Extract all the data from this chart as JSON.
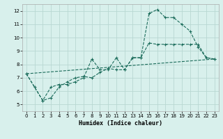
{
  "title": "",
  "xlabel": "Humidex (Indice chaleur)",
  "bg_color": "#d8f0ec",
  "grid_color": "#b8d8d2",
  "line_color": "#1a6b5a",
  "xlim": [
    -0.5,
    23.5
  ],
  "ylim": [
    4.5,
    12.5
  ],
  "xticks": [
    0,
    1,
    2,
    3,
    4,
    5,
    6,
    7,
    8,
    9,
    10,
    11,
    12,
    13,
    14,
    15,
    16,
    17,
    18,
    19,
    20,
    21,
    22,
    23
  ],
  "yticks": [
    5,
    6,
    7,
    8,
    9,
    10,
    11,
    12
  ],
  "line1_x": [
    0,
    1,
    2,
    3,
    4,
    5,
    6,
    7,
    8,
    9,
    10,
    11,
    12,
    13,
    14,
    15,
    16,
    17,
    18,
    19,
    20,
    21,
    22,
    23
  ],
  "line1_y": [
    7.3,
    6.3,
    5.3,
    5.5,
    6.3,
    6.7,
    7.0,
    7.1,
    7.0,
    7.4,
    7.7,
    7.6,
    7.6,
    8.5,
    8.5,
    9.6,
    9.5,
    9.5,
    9.5,
    9.5,
    9.5,
    9.5,
    8.5,
    8.4
  ],
  "line2_x": [
    0,
    2,
    3,
    4,
    5,
    6,
    7,
    8,
    9,
    10,
    11,
    12,
    13,
    14,
    15,
    16,
    17,
    18,
    19,
    20,
    21,
    22,
    23
  ],
  "line2_y": [
    7.3,
    5.3,
    6.3,
    6.5,
    6.5,
    6.7,
    7.0,
    8.4,
    7.6,
    7.6,
    8.5,
    7.6,
    8.5,
    8.5,
    11.8,
    12.1,
    11.5,
    11.5,
    11.0,
    10.5,
    9.3,
    8.5,
    8.4
  ],
  "line3_x": [
    0,
    23
  ],
  "line3_y": [
    7.3,
    8.4
  ]
}
